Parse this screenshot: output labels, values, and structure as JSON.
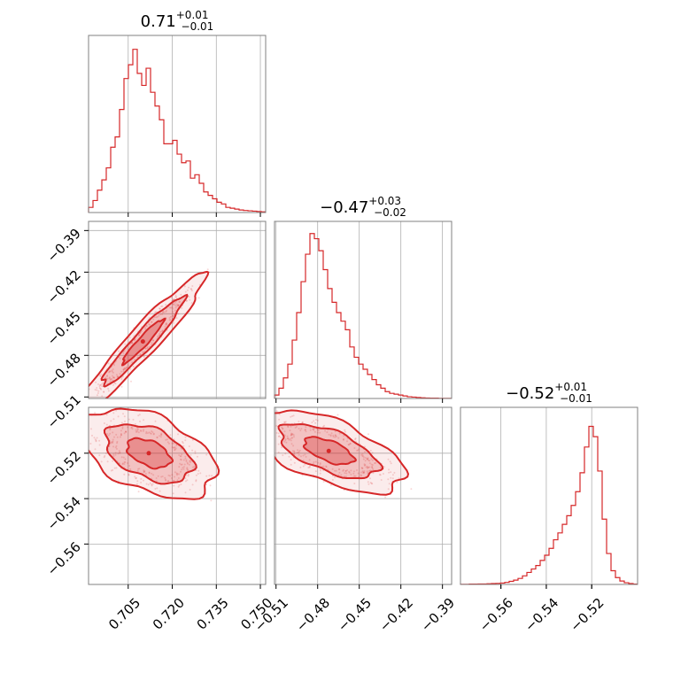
{
  "chart_data": {
    "type": "corner",
    "color": "#d62728",
    "grid": true,
    "titles": [
      {
        "median": "0.71",
        "plus": "+0.01",
        "minus": "−0.01"
      },
      {
        "median": "−0.47",
        "plus": "+0.03",
        "minus": "−0.02"
      },
      {
        "median": "−0.52",
        "plus": "+0.01",
        "minus": "−0.01"
      }
    ],
    "ranges": [
      [
        0.6915,
        0.7518
      ],
      [
        -0.5111,
        -0.3834
      ],
      [
        -0.5778,
        -0.4998
      ]
    ],
    "ticks": [
      {
        "values": [
          0.705,
          0.72,
          0.735,
          0.75
        ],
        "labels": [
          "0.705",
          "0.720",
          "0.735",
          "0.750"
        ]
      },
      {
        "values": [
          -0.51,
          -0.48,
          -0.45,
          -0.42,
          -0.39
        ],
        "labels": [
          "−0.51",
          "−0.48",
          "−0.45",
          "−0.42",
          "−0.39"
        ]
      },
      {
        "values": [
          -0.56,
          -0.54,
          -0.52
        ],
        "labels": [
          "−0.56",
          "−0.54",
          "−0.52"
        ]
      }
    ],
    "histograms": [
      {
        "param": 0,
        "heights": [
          0.03,
          0.07,
          0.13,
          0.19,
          0.26,
          0.38,
          0.44,
          0.6,
          0.78,
          0.86,
          0.95,
          0.81,
          0.74,
          0.84,
          0.7,
          0.62,
          0.54,
          0.4,
          0.4,
          0.42,
          0.34,
          0.29,
          0.3,
          0.2,
          0.22,
          0.17,
          0.12,
          0.1,
          0.08,
          0.06,
          0.05,
          0.03,
          0.025,
          0.02,
          0.015,
          0.012,
          0.01,
          0.008,
          0.006,
          0.004
        ]
      },
      {
        "param": 1,
        "heights": [
          0.02,
          0.06,
          0.12,
          0.2,
          0.34,
          0.5,
          0.68,
          0.84,
          0.96,
          0.93,
          0.86,
          0.75,
          0.64,
          0.56,
          0.5,
          0.45,
          0.4,
          0.3,
          0.24,
          0.2,
          0.17,
          0.14,
          0.11,
          0.08,
          0.06,
          0.04,
          0.03,
          0.025,
          0.02,
          0.015,
          0.01,
          0.008,
          0.006,
          0.004,
          0.003,
          0.002,
          0.002,
          0.001,
          0.001,
          0.001
        ]
      },
      {
        "param": 2,
        "heights": [
          0.001,
          0.001,
          0.002,
          0.002,
          0.003,
          0.003,
          0.004,
          0.005,
          0.006,
          0.008,
          0.012,
          0.018,
          0.025,
          0.035,
          0.05,
          0.07,
          0.09,
          0.11,
          0.14,
          0.17,
          0.21,
          0.26,
          0.3,
          0.35,
          0.4,
          0.46,
          0.54,
          0.65,
          0.8,
          0.92,
          0.86,
          0.66,
          0.38,
          0.18,
          0.08,
          0.04,
          0.02,
          0.01,
          0.005,
          0.002
        ]
      }
    ],
    "correlations": [
      {
        "x": 0,
        "y": 1,
        "center": [
          0.71,
          -0.47
        ],
        "sd": [
          0.007,
          0.016
        ],
        "rho": 0.95
      },
      {
        "x": 0,
        "y": 2,
        "center": [
          0.712,
          -0.52
        ],
        "sd": [
          0.0075,
          0.0065
        ],
        "rho": -0.45
      },
      {
        "x": 1,
        "y": 2,
        "center": [
          -0.472,
          -0.519
        ],
        "sd": [
          0.018,
          0.006
        ],
        "rho": -0.6
      }
    ],
    "contour_levels": [
      0.39,
      0.86,
      0.99
    ]
  }
}
